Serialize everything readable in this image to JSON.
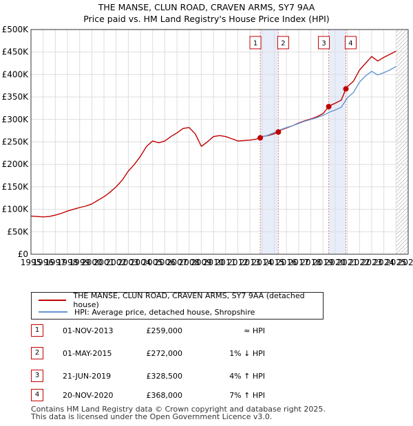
{
  "title_line1": "THE MANSE, CLUN ROAD, CRAVEN ARMS, SY7 9AA",
  "title_line2": "Price paid vs. HM Land Registry's House Price Index (HPI)",
  "chart_data": {
    "type": "line",
    "title": "THE MANSE, CLUN ROAD, CRAVEN ARMS, SY7 9AA — Price paid vs. HM Land Registry's House Price Index (HPI)",
    "xlabel": "",
    "ylabel": "",
    "xlim": [
      1995,
      2026
    ],
    "ylim": [
      0,
      500000
    ],
    "x_ticks": [
      "1995",
      "1996",
      "1997",
      "1998",
      "1999",
      "2000",
      "2001",
      "2002",
      "2003",
      "2004",
      "2005",
      "2006",
      "2007",
      "2008",
      "2009",
      "2010",
      "2011",
      "2012",
      "2013",
      "2014",
      "2015",
      "2016",
      "2017",
      "2018",
      "2019",
      "2020",
      "2021",
      "2022",
      "2023",
      "2024",
      "2025",
      "2026"
    ],
    "y_ticks": [
      {
        "value": 0,
        "label": "£0"
      },
      {
        "value": 50000,
        "label": "£50K"
      },
      {
        "value": 100000,
        "label": "£100K"
      },
      {
        "value": 150000,
        "label": "£150K"
      },
      {
        "value": 200000,
        "label": "£200K"
      },
      {
        "value": 250000,
        "label": "£250K"
      },
      {
        "value": 300000,
        "label": "£300K"
      },
      {
        "value": 350000,
        "label": "£350K"
      },
      {
        "value": 400000,
        "label": "£400K"
      },
      {
        "value": 450000,
        "label": "£450K"
      },
      {
        "value": 500000,
        "label": "£500K"
      }
    ],
    "grid": true,
    "colors": {
      "property": "#c00000",
      "hpi": "#6495d2",
      "shade": "#dde6f6",
      "marker_line": "#e08080"
    },
    "series": [
      {
        "name": "THE MANSE, CLUN ROAD, CRAVEN ARMS, SY7 9AA (detached house)",
        "x": [
          1995.0,
          1995.5,
          1996.0,
          1996.5,
          1997.0,
          1997.5,
          1998.0,
          1998.5,
          1999.0,
          1999.5,
          2000.0,
          2000.5,
          2001.0,
          2001.5,
          2002.0,
          2002.5,
          2003.0,
          2003.5,
          2004.0,
          2004.5,
          2005.0,
          2005.5,
          2006.0,
          2006.5,
          2007.0,
          2007.5,
          2008.0,
          2008.5,
          2009.0,
          2009.5,
          2010.0,
          2010.5,
          2011.0,
          2011.5,
          2012.0,
          2012.5,
          2013.0,
          2013.5,
          2013.84,
          2014.0,
          2014.5,
          2015.0,
          2015.33,
          2015.5,
          2016.0,
          2016.5,
          2017.0,
          2017.5,
          2018.0,
          2018.5,
          2019.0,
          2019.47,
          2019.5,
          2020.0,
          2020.5,
          2020.88,
          2021.0,
          2021.5,
          2022.0,
          2022.5,
          2023.0,
          2023.5,
          2024.0,
          2024.5,
          2025.0
        ],
        "values": [
          85000,
          84000,
          83000,
          84000,
          87000,
          91000,
          96000,
          100000,
          104000,
          107000,
          112000,
          120000,
          128000,
          138000,
          150000,
          165000,
          185000,
          200000,
          218000,
          240000,
          252000,
          248000,
          252000,
          262000,
          270000,
          280000,
          282000,
          268000,
          240000,
          250000,
          262000,
          264000,
          262000,
          257000,
          252000,
          253000,
          254000,
          256000,
          259000,
          262000,
          264000,
          268000,
          272000,
          276000,
          281000,
          286000,
          292000,
          297000,
          301000,
          306000,
          313000,
          328500,
          330000,
          336000,
          343000,
          368000,
          373000,
          385000,
          410000,
          425000,
          440000,
          430000,
          438000,
          445000,
          452000
        ]
      },
      {
        "name": "HPI: Average price, detached house, Shropshire",
        "x": [
          2013.84,
          2014.0,
          2014.5,
          2015.0,
          2015.33,
          2015.5,
          2016.0,
          2016.5,
          2017.0,
          2017.5,
          2018.0,
          2018.5,
          2019.0,
          2019.47,
          2019.5,
          2020.0,
          2020.5,
          2020.88,
          2021.0,
          2021.5,
          2022.0,
          2022.5,
          2023.0,
          2023.5,
          2024.0,
          2024.5,
          2025.0
        ],
        "values": [
          259000,
          261000,
          265000,
          271000,
          274000,
          277000,
          282000,
          286000,
          291000,
          296000,
          300000,
          304000,
          309000,
          315000,
          316000,
          321000,
          327000,
          343000,
          348000,
          360000,
          383000,
          397000,
          407000,
          399000,
          404000,
          410000,
          418000
        ]
      }
    ],
    "sales": [
      {
        "n": "1",
        "x": 2013.84,
        "value": 259000
      },
      {
        "n": "2",
        "x": 2015.33,
        "value": 272000
      },
      {
        "n": "3",
        "x": 2019.47,
        "value": 328500
      },
      {
        "n": "4",
        "x": 2020.88,
        "value": 368000
      }
    ],
    "shaded_ranges": [
      [
        2013.84,
        2015.33
      ],
      [
        2019.47,
        2020.88
      ]
    ],
    "hatched_from": 2025.0
  },
  "legend": {
    "property_label": "THE MANSE, CLUN ROAD, CRAVEN ARMS, SY7 9AA (detached house)",
    "hpi_label": "HPI: Average price, detached house, Shropshire"
  },
  "transactions": [
    {
      "n": "1",
      "date": "01-NOV-2013",
      "price": "£259,000",
      "hpi": "≈ HPI"
    },
    {
      "n": "2",
      "date": "01-MAY-2015",
      "price": "£272,000",
      "hpi": "1% ↓ HPI"
    },
    {
      "n": "3",
      "date": "21-JUN-2019",
      "price": "£328,500",
      "hpi": "4% ↑ HPI"
    },
    {
      "n": "4",
      "date": "20-NOV-2020",
      "price": "£368,000",
      "hpi": "7% ↑ HPI"
    }
  ],
  "footer": {
    "line1": "Contains HM Land Registry data © Crown copyright and database right 2025.",
    "line2": "This data is licensed under the Open Government Licence v3.0."
  }
}
